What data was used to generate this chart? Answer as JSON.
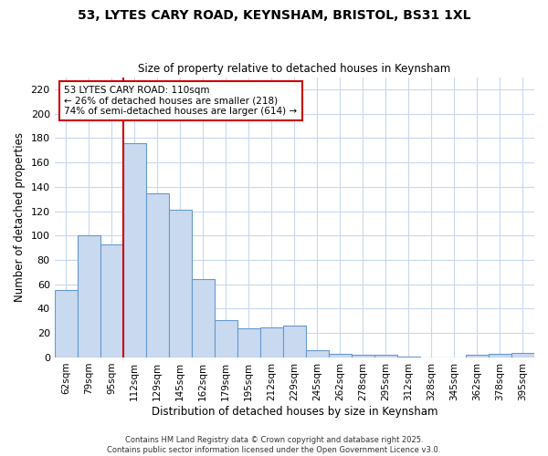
{
  "title_line1": "53, LYTES CARY ROAD, KEYNSHAM, BRISTOL, BS31 1XL",
  "title_line2": "Size of property relative to detached houses in Keynsham",
  "xlabel": "Distribution of detached houses by size in Keynsham",
  "ylabel": "Number of detached properties",
  "categories": [
    "62sqm",
    "79sqm",
    "95sqm",
    "112sqm",
    "129sqm",
    "145sqm",
    "162sqm",
    "179sqm",
    "195sqm",
    "212sqm",
    "229sqm",
    "245sqm",
    "262sqm",
    "278sqm",
    "295sqm",
    "312sqm",
    "328sqm",
    "345sqm",
    "362sqm",
    "378sqm",
    "395sqm"
  ],
  "values": [
    55,
    100,
    93,
    176,
    135,
    121,
    64,
    31,
    24,
    25,
    26,
    6,
    3,
    2,
    2,
    1,
    0,
    0,
    2,
    3,
    4
  ],
  "bar_color": "#c9daf0",
  "bar_edge_color": "#6699cc",
  "highlight_index": 3,
  "highlight_line_color": "#cc0000",
  "annotation_text": "53 LYTES CARY ROAD: 110sqm\n← 26% of detached houses are smaller (218)\n74% of semi-detached houses are larger (614) →",
  "annotation_box_color": "#ffffff",
  "annotation_box_edge": "#cc0000",
  "ylim": [
    0,
    230
  ],
  "yticks": [
    0,
    20,
    40,
    60,
    80,
    100,
    120,
    140,
    160,
    180,
    200,
    220
  ],
  "footer": "Contains HM Land Registry data © Crown copyright and database right 2025.\nContains public sector information licensed under the Open Government Licence v3.0.",
  "bg_color": "#ffffff",
  "grid_color": "#c8d8f0"
}
